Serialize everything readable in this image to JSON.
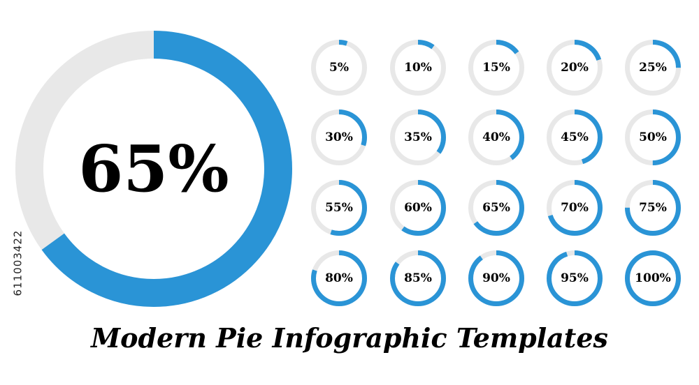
{
  "colors": {
    "progress": "#2a94d6",
    "track": "#e8e8e8",
    "text": "#000000"
  },
  "main_ring": {
    "percent": 65,
    "label": "65%"
  },
  "templates": [
    {
      "percent": 5,
      "label": "5%"
    },
    {
      "percent": 10,
      "label": "10%"
    },
    {
      "percent": 15,
      "label": "15%"
    },
    {
      "percent": 20,
      "label": "20%"
    },
    {
      "percent": 25,
      "label": "25%"
    },
    {
      "percent": 30,
      "label": "30%"
    },
    {
      "percent": 35,
      "label": "35%"
    },
    {
      "percent": 40,
      "label": "40%"
    },
    {
      "percent": 45,
      "label": "45%"
    },
    {
      "percent": 50,
      "label": "50%"
    },
    {
      "percent": 55,
      "label": "55%"
    },
    {
      "percent": 60,
      "label": "60%"
    },
    {
      "percent": 65,
      "label": "65%"
    },
    {
      "percent": 70,
      "label": "70%"
    },
    {
      "percent": 75,
      "label": "75%"
    },
    {
      "percent": 80,
      "label": "80%"
    },
    {
      "percent": 85,
      "label": "85%"
    },
    {
      "percent": 90,
      "label": "90%"
    },
    {
      "percent": 95,
      "label": "95%"
    },
    {
      "percent": 100,
      "label": "100%"
    }
  ],
  "title": "Modern Pie Infographic Templates",
  "stock_id": "611003422"
}
